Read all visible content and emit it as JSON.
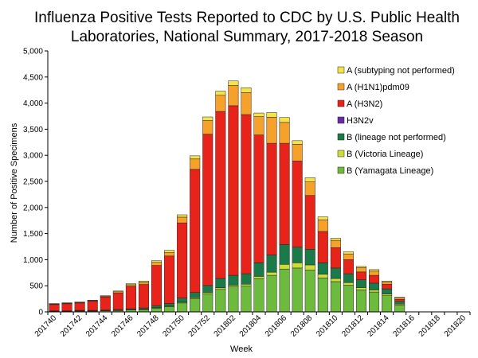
{
  "chart_data": {
    "type": "bar",
    "stacked": true,
    "title_lines": [
      "Influenza Positive Tests Reported to CDC by U.S. Public Health",
      "Laboratories, National Summary, 2017-2018 Season"
    ],
    "xlabel": "Week",
    "ylabel": "Number of Positive Specimens",
    "ylim": [
      0,
      5000
    ],
    "yticks": [
      "0",
      "500",
      "1,000",
      "1,500",
      "2,000",
      "2,500",
      "3,000",
      "3,500",
      "4,000",
      "4,500",
      "5,000"
    ],
    "ytick_values": [
      0,
      500,
      1000,
      1500,
      2000,
      2500,
      3000,
      3500,
      4000,
      4500,
      5000
    ],
    "xtick_labels": [
      "201740",
      "201742",
      "201744",
      "201746",
      "201748",
      "201750",
      "201752",
      "201802",
      "201804",
      "201806",
      "201808",
      "201810",
      "201812",
      "201814",
      "201816",
      "201818",
      "201820"
    ],
    "legend_position": "top-right",
    "categories": [
      "201740",
      "201741",
      "201742",
      "201743",
      "201744",
      "201745",
      "201746",
      "201747",
      "201748",
      "201749",
      "201750",
      "201751",
      "201752",
      "201801",
      "201802",
      "201803",
      "201804",
      "201805",
      "201806",
      "201807",
      "201808",
      "201809",
      "201810",
      "201811",
      "201812",
      "201813",
      "201814",
      "201815",
      "201816",
      "201817",
      "201818",
      "201819",
      "201820"
    ],
    "series": [
      {
        "name": "B (Yamagata Lineage)",
        "color": "#6dbb3c",
        "values": [
          10,
          10,
          15,
          15,
          20,
          25,
          35,
          40,
          70,
          100,
          170,
          250,
          350,
          430,
          480,
          500,
          640,
          700,
          820,
          840,
          800,
          650,
          580,
          510,
          420,
          380,
          310,
          130,
          0,
          0,
          0,
          0,
          0
        ]
      },
      {
        "name": "B (Victoria Lineage)",
        "color": "#ccdd33",
        "values": [
          5,
          5,
          5,
          5,
          5,
          5,
          5,
          10,
          10,
          10,
          15,
          20,
          25,
          30,
          30,
          30,
          40,
          60,
          90,
          100,
          100,
          70,
          60,
          50,
          45,
          40,
          30,
          20,
          0,
          0,
          0,
          0,
          0
        ]
      },
      {
        "name": "B (lineage not performed)",
        "color": "#1a7a4a",
        "values": [
          5,
          5,
          10,
          10,
          10,
          15,
          20,
          25,
          40,
          50,
          80,
          100,
          130,
          180,
          190,
          200,
          260,
          330,
          380,
          300,
          300,
          220,
          200,
          170,
          150,
          130,
          100,
          50,
          0,
          0,
          0,
          0,
          0
        ]
      },
      {
        "name": "H3N2v",
        "color": "#6a2ba8",
        "values": [
          0,
          0,
          0,
          0,
          0,
          0,
          0,
          0,
          0,
          0,
          0,
          0,
          0,
          0,
          0,
          0,
          0,
          0,
          0,
          0,
          0,
          0,
          0,
          0,
          0,
          0,
          0,
          0,
          0,
          0,
          0,
          0,
          0
        ]
      },
      {
        "name": "A (H3N2)",
        "color": "#e8231a",
        "values": [
          120,
          135,
          140,
          175,
          250,
          320,
          430,
          450,
          770,
          910,
          1440,
          2360,
          2900,
          3200,
          3250,
          3050,
          2450,
          2140,
          1940,
          1650,
          1030,
          600,
          390,
          270,
          150,
          150,
          90,
          40,
          0,
          0,
          0,
          0,
          0
        ]
      },
      {
        "name": "A (H1N1)pdm09",
        "color": "#f5a12a",
        "values": [
          10,
          10,
          10,
          10,
          15,
          20,
          30,
          40,
          60,
          70,
          110,
          200,
          260,
          310,
          390,
          420,
          350,
          500,
          400,
          320,
          260,
          220,
          140,
          110,
          80,
          80,
          40,
          30,
          0,
          0,
          0,
          0,
          0
        ]
      },
      {
        "name": "A (subtyping not performed)",
        "color": "#f5e34a",
        "values": [
          10,
          10,
          10,
          10,
          10,
          15,
          20,
          25,
          30,
          40,
          45,
          60,
          70,
          80,
          85,
          95,
          70,
          90,
          95,
          70,
          80,
          60,
          40,
          40,
          25,
          30,
          20,
          10,
          0,
          0,
          0,
          0,
          0
        ]
      }
    ]
  }
}
